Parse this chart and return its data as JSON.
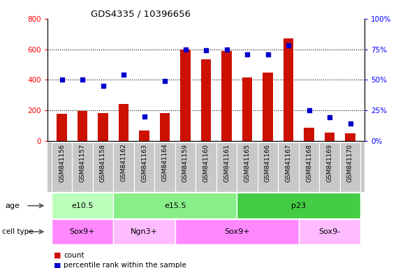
{
  "title": "GDS4335 / 10396656",
  "samples": [
    "GSM841156",
    "GSM841157",
    "GSM841158",
    "GSM841162",
    "GSM841163",
    "GSM841164",
    "GSM841159",
    "GSM841160",
    "GSM841161",
    "GSM841165",
    "GSM841166",
    "GSM841167",
    "GSM841168",
    "GSM841169",
    "GSM841170"
  ],
  "counts": [
    175,
    195,
    180,
    240,
    65,
    180,
    600,
    535,
    590,
    415,
    445,
    670,
    85,
    55,
    50
  ],
  "percentile_ranks": [
    50,
    50,
    45,
    54,
    20,
    49,
    75,
    74,
    75,
    71,
    71,
    78,
    25,
    19,
    14
  ],
  "age_groups": [
    {
      "label": "e10.5",
      "start": 0,
      "end": 3,
      "color": "#bbffbb"
    },
    {
      "label": "e15.5",
      "start": 3,
      "end": 9,
      "color": "#88ee88"
    },
    {
      "label": "p23",
      "start": 9,
      "end": 15,
      "color": "#44cc44"
    }
  ],
  "cell_type_groups": [
    {
      "label": "Sox9+",
      "start": 0,
      "end": 3,
      "color": "#ff88ff"
    },
    {
      "label": "Ngn3+",
      "start": 3,
      "end": 6,
      "color": "#ffbbff"
    },
    {
      "label": "Sox9+",
      "start": 6,
      "end": 12,
      "color": "#ff88ff"
    },
    {
      "label": "Sox9-",
      "start": 12,
      "end": 15,
      "color": "#ffbbff"
    }
  ],
  "bar_color": "#cc1100",
  "dot_color": "#0000cc",
  "ylim_left": [
    0,
    800
  ],
  "ylim_right": [
    0,
    100
  ],
  "yticks_left": [
    0,
    200,
    400,
    600,
    800
  ],
  "yticks_right": [
    0,
    25,
    50,
    75,
    100
  ],
  "ytick_labels_right": [
    "0%",
    "25%",
    "50%",
    "75%",
    "100%"
  ],
  "tick_area_color": "#c8c8c8"
}
